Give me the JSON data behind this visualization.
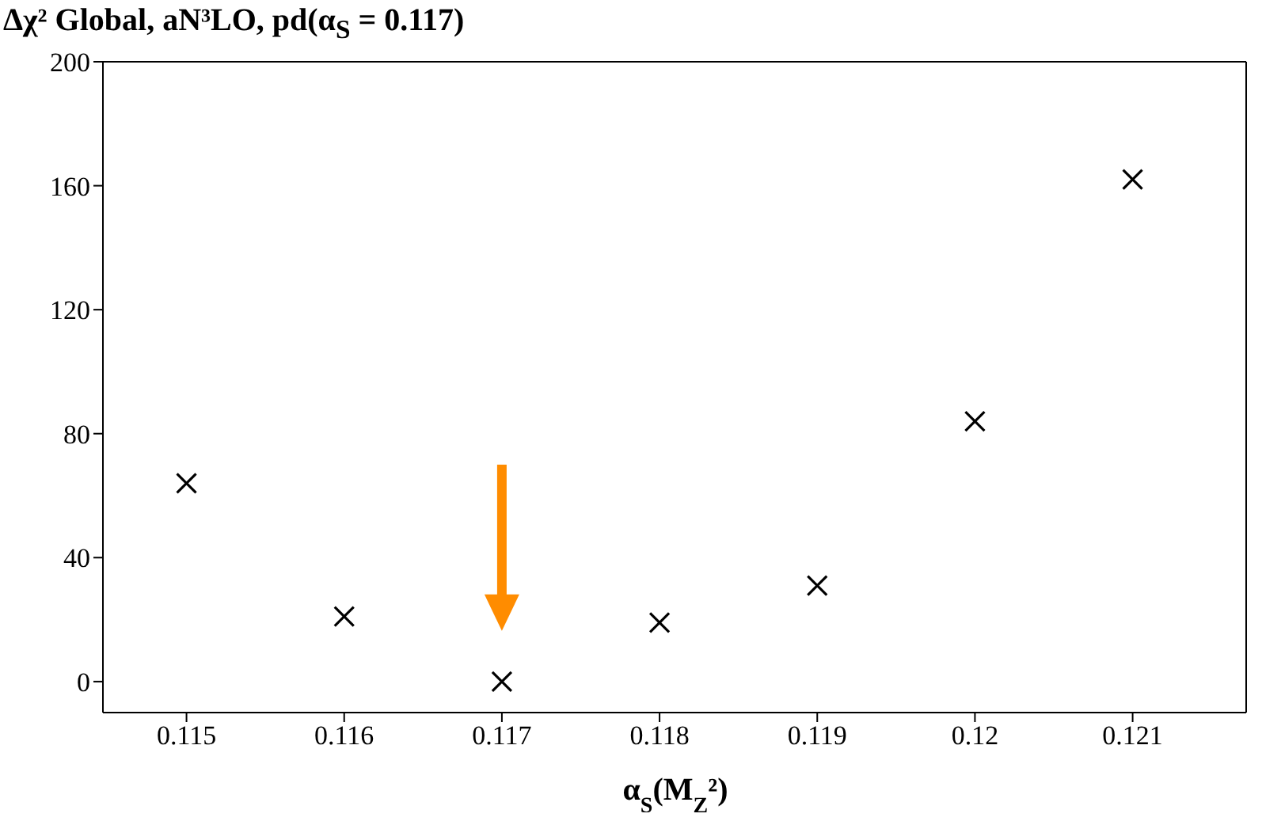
{
  "chart_data": {
    "type": "scatter",
    "title": "Δχ² Global, aN³LO, pd(α$_{S}$ = 0.117)",
    "xlabel": "α$_{S}$(M$_{Z}$²)",
    "x": [
      0.115,
      0.116,
      0.117,
      0.118,
      0.119,
      0.12,
      0.121
    ],
    "series": [
      {
        "color": "#000000",
        "values": [
          64,
          21,
          0,
          19,
          31,
          84,
          162
        ]
      }
    ],
    "marker": "cross",
    "xlim": [
      0.11447,
      0.12172
    ],
    "xticks": [
      0.115,
      0.116,
      0.117,
      0.118,
      0.119,
      0.12,
      0.121
    ],
    "ylim": [
      -10,
      200
    ],
    "yticks": [
      0,
      40,
      80,
      120,
      160,
      200
    ],
    "grid": false
  }
}
